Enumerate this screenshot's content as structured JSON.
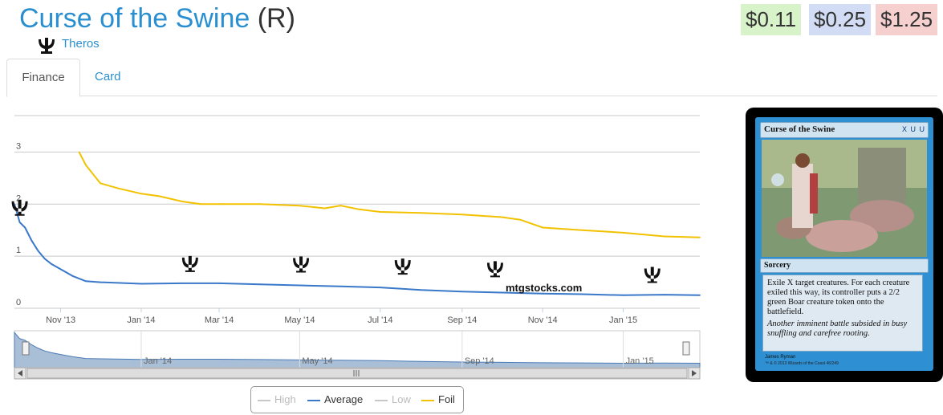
{
  "card": {
    "name": "Curse of the Swine",
    "rarity": "(R)",
    "set_name": "Theros",
    "set_icon": "theros-set-icon"
  },
  "prices": {
    "low": "$0.11",
    "average": "$0.25",
    "high": "$1.25"
  },
  "tabs": [
    {
      "label": "Finance",
      "active": true
    },
    {
      "label": "Card",
      "active": false
    }
  ],
  "chart_data": {
    "type": "line",
    "ylim": [
      0,
      3.7
    ],
    "y_ticks": [
      0,
      1,
      2,
      3
    ],
    "x_ticks": [
      "Nov '13",
      "Jan '14",
      "Mar '14",
      "May '14",
      "Jul '14",
      "Sep '14",
      "Nov '14",
      "Jan '15"
    ],
    "navigator_ticks": [
      "Jan '14",
      "May '14",
      "Sep '14",
      "Jan '15"
    ],
    "watermark": "mtgstocks.com",
    "grid": true,
    "series": [
      {
        "name": "Foil",
        "color": "#f2c200",
        "x": [
          "2013-11-15",
          "2013-11-20",
          "2013-12-01",
          "2013-12-15",
          "2014-01-01",
          "2014-01-15",
          "2014-02-01",
          "2014-02-15",
          "2014-03-01",
          "2014-04-01",
          "2014-05-01",
          "2014-05-20",
          "2014-06-01",
          "2014-06-15",
          "2014-07-01",
          "2014-08-01",
          "2014-09-01",
          "2014-10-01",
          "2014-10-15",
          "2014-11-01",
          "2014-12-01",
          "2015-01-01",
          "2015-02-01",
          "2015-02-28"
        ],
        "values": [
          3.0,
          2.75,
          2.4,
          2.3,
          2.2,
          2.15,
          2.05,
          2.0,
          2.0,
          2.0,
          1.97,
          1.92,
          1.97,
          1.9,
          1.85,
          1.83,
          1.8,
          1.75,
          1.7,
          1.55,
          1.5,
          1.45,
          1.38,
          1.36
        ]
      },
      {
        "name": "Average",
        "color": "#3a78c9",
        "x": [
          "2013-09-27",
          "2013-10-01",
          "2013-10-05",
          "2013-10-10",
          "2013-10-15",
          "2013-10-20",
          "2013-10-25",
          "2013-11-01",
          "2013-11-10",
          "2013-11-20",
          "2013-12-01",
          "2014-01-01",
          "2014-02-01",
          "2014-03-01",
          "2014-04-01",
          "2014-05-01",
          "2014-06-01",
          "2014-07-01",
          "2014-08-01",
          "2014-09-01",
          "2014-10-01",
          "2014-11-01",
          "2014-12-01",
          "2015-01-01",
          "2015-02-01",
          "2015-02-28"
        ],
        "values": [
          2.0,
          1.65,
          1.55,
          1.3,
          1.1,
          0.95,
          0.85,
          0.75,
          0.62,
          0.52,
          0.5,
          0.47,
          0.48,
          0.48,
          0.46,
          0.44,
          0.42,
          0.4,
          0.35,
          0.32,
          0.3,
          0.28,
          0.27,
          0.25,
          0.26,
          0.25
        ]
      }
    ],
    "legend": [
      {
        "name": "High",
        "color": "#c8c8c8",
        "active": false
      },
      {
        "name": "Average",
        "color": "#3a78c9",
        "active": true
      },
      {
        "name": "Low",
        "color": "#c8c8c8",
        "active": false
      },
      {
        "name": "Foil",
        "color": "#f2c200",
        "active": true
      }
    ],
    "set_markers": [
      {
        "date": "2013-10-01",
        "value": 1.93,
        "icon": "theros-set-icon"
      },
      {
        "date": "2014-02-07",
        "value": 0.85,
        "icon": "born-of-the-gods-set-icon"
      },
      {
        "date": "2014-05-02",
        "value": 0.84,
        "icon": "journey-into-nyx-set-icon"
      },
      {
        "date": "2014-07-18",
        "value": 0.8,
        "icon": "m15-set-icon"
      },
      {
        "date": "2014-09-26",
        "value": 0.75,
        "icon": "khans-of-tarkir-set-icon"
      },
      {
        "date": "2015-01-23",
        "value": 0.64,
        "icon": "fate-reforged-set-icon"
      }
    ]
  },
  "card_image": {
    "name": "Curse of the Swine",
    "mana_cost": "X U U",
    "type": "Sorcery",
    "rules_text": "Exile X target creatures. For each creature exiled this way, its controller puts a 2/2 green Boar creature token onto the battlefield.",
    "flavor_text": "Another imminent battle subsided in busy snuffling and carefree rooting.",
    "artist": "James Ryman",
    "copyright": "™ & © 2013 Wizards of the Coast 46/249"
  }
}
